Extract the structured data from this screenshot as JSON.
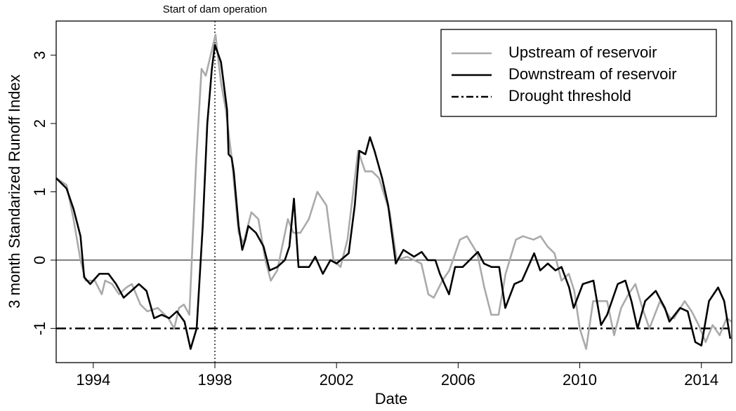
{
  "chart_data": {
    "type": "line",
    "xlabel": "Date",
    "ylabel": "3 month Standarized Runoff Index",
    "annotation": {
      "text": "Start of dam operation",
      "x": 1998.0
    },
    "threshold": {
      "name": "Drought threshold",
      "value": -1,
      "color": "#000000"
    },
    "reference_lines": [
      0
    ],
    "xlim": [
      1992.78,
      2015.0
    ],
    "ylim": [
      -1.5,
      3.5
    ],
    "xticks": [
      1994,
      1998,
      2002,
      2006,
      2010,
      2014
    ],
    "yticks": [
      -1,
      0,
      1,
      2,
      3
    ],
    "legend": "topright",
    "series": [
      {
        "name": "Upstream of reservoir",
        "color": "#aaaaaa",
        "x": [
          1992.78,
          1993.12,
          1993.35,
          1993.58,
          1993.75,
          1994.05,
          1994.28,
          1994.39,
          1994.62,
          1994.85,
          1995.09,
          1995.27,
          1995.55,
          1995.78,
          1996.12,
          1996.47,
          1996.66,
          1996.82,
          1996.98,
          1997.16,
          1997.39,
          1997.56,
          1997.7,
          1997.86,
          1998.02,
          1998.2,
          1998.36,
          1998.55,
          1998.78,
          1998.94,
          1999.2,
          1999.43,
          1999.66,
          1999.84,
          2000.05,
          2000.4,
          2000.58,
          2000.81,
          2001.09,
          2001.37,
          2001.67,
          2001.9,
          2002.13,
          2002.36,
          2002.71,
          2002.94,
          2003.17,
          2003.4,
          2003.75,
          2003.98,
          2004.32,
          2004.79,
          2005.02,
          2005.2,
          2005.48,
          2005.71,
          2006.06,
          2006.29,
          2006.63,
          2006.86,
          2007.09,
          2007.33,
          2007.56,
          2007.9,
          2008.13,
          2008.48,
          2008.71,
          2008.94,
          2009.17,
          2009.4,
          2009.64,
          2009.82,
          2010.0,
          2010.21,
          2010.44,
          2010.67,
          2010.9,
          2011.13,
          2011.36,
          2011.6,
          2011.83,
          2012.06,
          2012.29,
          2012.64,
          2012.98,
          2013.1,
          2013.45,
          2013.68,
          2013.91,
          2014.14,
          2014.37,
          2014.6,
          2014.83,
          2014.99
        ],
        "values": [
          1.2,
          1.1,
          0.6,
          0.0,
          -0.3,
          -0.3,
          -0.5,
          -0.3,
          -0.35,
          -0.5,
          -0.4,
          -0.35,
          -0.65,
          -0.75,
          -0.7,
          -0.85,
          -1.0,
          -0.7,
          -0.65,
          -0.8,
          1.5,
          2.8,
          2.7,
          3.0,
          3.3,
          2.6,
          2.2,
          1.5,
          0.4,
          0.25,
          0.7,
          0.6,
          0.0,
          -0.3,
          -0.15,
          0.6,
          0.4,
          0.4,
          0.6,
          1.0,
          0.8,
          0.0,
          -0.1,
          0.3,
          1.6,
          1.3,
          1.3,
          1.2,
          0.7,
          0.0,
          0.05,
          -0.05,
          -0.5,
          -0.55,
          -0.3,
          -0.15,
          0.3,
          0.35,
          0.1,
          -0.4,
          -0.8,
          -0.8,
          -0.2,
          0.3,
          0.35,
          0.3,
          0.35,
          0.2,
          0.1,
          -0.3,
          -0.2,
          -0.45,
          -1.0,
          -1.3,
          -0.6,
          -0.6,
          -0.6,
          -1.1,
          -0.7,
          -0.5,
          -0.35,
          -0.7,
          -1.0,
          -0.6,
          -0.85,
          -0.85,
          -0.6,
          -0.75,
          -0.95,
          -1.2,
          -0.95,
          -1.1,
          -0.85,
          -0.9
        ]
      },
      {
        "name": "Downstream of reservoir",
        "color": "#000000",
        "x": [
          1992.78,
          1993.12,
          1993.35,
          1993.58,
          1993.7,
          1993.9,
          1994.2,
          1994.5,
          1994.75,
          1995.0,
          1995.25,
          1995.5,
          1995.75,
          1996.0,
          1996.25,
          1996.5,
          1996.75,
          1997.0,
          1997.2,
          1997.4,
          1997.6,
          1997.75,
          1997.9,
          1998.0,
          1998.2,
          1998.4,
          1998.45,
          1998.55,
          1998.62,
          1998.78,
          1998.9,
          1999.0,
          1999.1,
          1999.35,
          1999.6,
          1999.8,
          2000.05,
          2000.3,
          2000.45,
          2000.6,
          2000.75,
          2001.1,
          2001.3,
          2001.55,
          2001.8,
          2002.0,
          2002.4,
          2002.6,
          2002.75,
          2002.95,
          2003.1,
          2003.25,
          2003.5,
          2003.7,
          2003.95,
          2004.2,
          2004.55,
          2004.8,
          2005.0,
          2005.25,
          2005.4,
          2005.7,
          2005.9,
          2006.15,
          2006.65,
          2006.85,
          2007.1,
          2007.35,
          2007.55,
          2007.85,
          2008.1,
          2008.5,
          2008.7,
          2008.95,
          2009.2,
          2009.4,
          2009.65,
          2009.8,
          2010.1,
          2010.45,
          2010.7,
          2010.9,
          2011.25,
          2011.5,
          2011.7,
          2011.9,
          2012.15,
          2012.5,
          2012.8,
          2012.95,
          2013.3,
          2013.55,
          2013.8,
          2014.0,
          2014.25,
          2014.55,
          2014.75,
          2014.95
        ],
        "values": [
          1.2,
          1.05,
          0.75,
          0.35,
          -0.25,
          -0.35,
          -0.2,
          -0.2,
          -0.35,
          -0.55,
          -0.45,
          -0.35,
          -0.45,
          -0.85,
          -0.8,
          -0.85,
          -0.75,
          -0.9,
          -1.3,
          -1.0,
          0.5,
          2.0,
          2.8,
          3.15,
          2.9,
          2.2,
          1.55,
          1.5,
          1.3,
          0.5,
          0.15,
          0.3,
          0.5,
          0.4,
          0.2,
          -0.15,
          -0.1,
          0.0,
          0.2,
          0.9,
          -0.1,
          -0.1,
          0.05,
          -0.2,
          0.0,
          -0.05,
          0.1,
          0.8,
          1.6,
          1.55,
          1.8,
          1.6,
          1.2,
          0.8,
          -0.05,
          0.15,
          0.05,
          0.12,
          0.0,
          0.0,
          -0.2,
          -0.5,
          -0.1,
          -0.1,
          0.12,
          -0.05,
          -0.1,
          -0.1,
          -0.7,
          -0.35,
          -0.3,
          0.1,
          -0.15,
          -0.05,
          -0.15,
          -0.1,
          -0.4,
          -0.7,
          -0.35,
          -0.3,
          -0.95,
          -0.8,
          -0.35,
          -0.3,
          -0.6,
          -1.0,
          -0.6,
          -0.45,
          -0.7,
          -0.9,
          -0.7,
          -0.75,
          -1.2,
          -1.25,
          -0.6,
          -0.4,
          -0.6,
          -1.15
        ]
      }
    ]
  }
}
